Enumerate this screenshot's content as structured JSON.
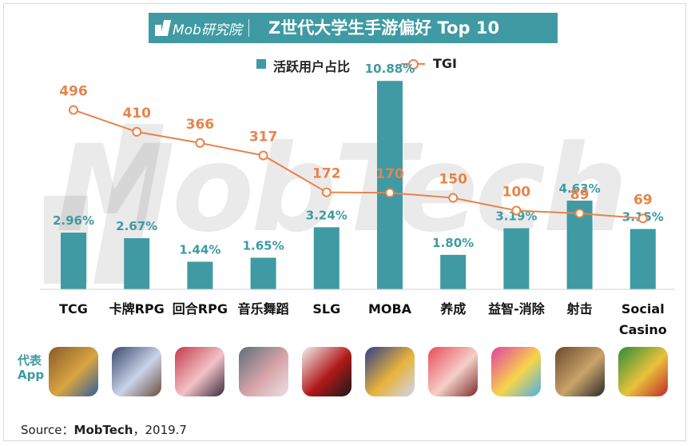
{
  "header": {
    "brand": "Mob研究院",
    "title": "Z世代大学生手游偏好 Top 10"
  },
  "legend": {
    "bar_label": "活跃用户占比",
    "line_label": "TGI"
  },
  "watermark": "MobTech",
  "apps_label_line1": "代表",
  "apps_label_line2": "App",
  "source": {
    "prefix": "Source：",
    "name": "MobTech",
    "suffix": "，2019.7"
  },
  "colors": {
    "bar": "#3f9aa3",
    "line": "#e8834a",
    "bar_label": "#3f9aa3",
    "line_label": "#e8834a"
  },
  "chart_data": {
    "type": "bar",
    "categories": [
      "TCG",
      "卡牌RPG",
      "回合RPG",
      "音乐舞蹈",
      "SLG",
      "MOBA",
      "养成",
      "益智-消除",
      "射击",
      "Social Casino"
    ],
    "category_lines": [
      [
        "TCG"
      ],
      [
        "卡牌RPG"
      ],
      [
        "回合RPG"
      ],
      [
        "音乐舞蹈"
      ],
      [
        "SLG"
      ],
      [
        "MOBA"
      ],
      [
        "养成"
      ],
      [
        "益智-消除"
      ],
      [
        "射击"
      ],
      [
        "Social",
        "Casino"
      ]
    ],
    "series": [
      {
        "name": "活跃用户占比",
        "type": "bar",
        "values": [
          2.96,
          2.67,
          1.44,
          1.65,
          3.24,
          10.88,
          1.8,
          3.19,
          4.63,
          3.15
        ],
        "labels": [
          "2.96%",
          "2.67%",
          "1.44%",
          "1.65%",
          "3.24%",
          "10.88%",
          "1.80%",
          "3.19%",
          "4.63%",
          "3.15%"
        ]
      },
      {
        "name": "TGI",
        "type": "line",
        "values": [
          496,
          410,
          366,
          317,
          172,
          170,
          150,
          100,
          89,
          69
        ],
        "labels": [
          "496",
          "410",
          "366",
          "317",
          "172",
          "170",
          "150",
          "100",
          "89",
          "69"
        ]
      }
    ],
    "bar_ylim": [
      0,
      12.6
    ],
    "line_ylim": [
      -210,
      740
    ],
    "grid": false,
    "legend_position": "top-center"
  },
  "apps": [
    {
      "name": "hearthstone-app-icon",
      "colors": [
        "#8a5a2b",
        "#d9a441",
        "#2f5f9e"
      ]
    },
    {
      "name": "card-rpg-app-icon",
      "colors": [
        "#3b4a6b",
        "#c9d3e8",
        "#6a4c3b"
      ]
    },
    {
      "name": "turn-rpg-app-icon",
      "colors": [
        "#c23a4a",
        "#f2c2c8",
        "#3a2a3a"
      ]
    },
    {
      "name": "music-dance-app-icon",
      "colors": [
        "#5c6f7a",
        "#d8a3a8",
        "#e9e2e4"
      ]
    },
    {
      "name": "slg-app-icon",
      "colors": [
        "#f2f2f2",
        "#b01818",
        "#1a1a1a"
      ]
    },
    {
      "name": "moba-app-icon",
      "colors": [
        "#2d3f8a",
        "#e8b23b",
        "#cfd6f0"
      ]
    },
    {
      "name": "raising-app-icon",
      "colors": [
        "#e94a5a",
        "#f5d0c8",
        "#7a2a2a"
      ]
    },
    {
      "name": "puzzle-app-icon",
      "colors": [
        "#e03fa8",
        "#f7d54a",
        "#4ab0e8"
      ]
    },
    {
      "name": "shooter-app-icon",
      "colors": [
        "#6b4a2b",
        "#c9a36a",
        "#2a2a2a"
      ]
    },
    {
      "name": "casino-app-icon",
      "colors": [
        "#2e8b3a",
        "#e8c23b",
        "#c0282a"
      ]
    }
  ]
}
